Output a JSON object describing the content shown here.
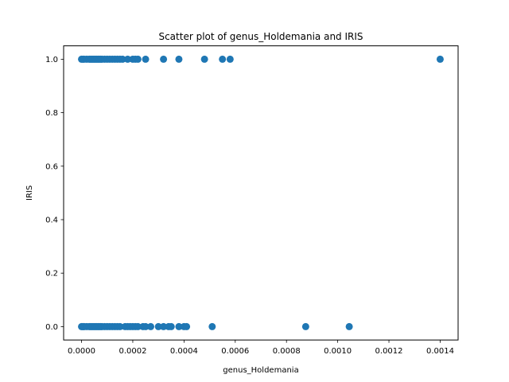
{
  "chart_data": {
    "type": "scatter",
    "title": "Scatter plot of genus_Holdemania and IRIS",
    "xlabel": "genus_Holdemania",
    "ylabel": "IRIS",
    "xlim": [
      -7e-05,
      0.00147
    ],
    "ylim": [
      -0.05,
      1.05
    ],
    "xticks": [
      0.0,
      0.0002,
      0.0004,
      0.0006,
      0.0008,
      0.001,
      0.0012,
      0.0014
    ],
    "xtick_labels": [
      "0.0000",
      "0.0002",
      "0.0004",
      "0.0006",
      "0.0008",
      "0.0010",
      "0.0012",
      "0.0014"
    ],
    "yticks": [
      0.0,
      0.2,
      0.4,
      0.6,
      0.8,
      1.0
    ],
    "ytick_labels": [
      "0.0",
      "0.2",
      "0.4",
      "0.6",
      "0.8",
      "1.0"
    ],
    "grid": false,
    "point_color": "#1f77b4",
    "series": [
      {
        "x": [
          0.0,
          5e-06,
          1e-05,
          2e-05,
          3e-05,
          3.5e-05,
          4e-05,
          4.5e-05,
          5e-05,
          5.5e-05,
          6e-05,
          6.5e-05,
          7e-05,
          7.5e-05,
          8e-05,
          9e-05,
          0.0001,
          0.00011,
          0.00012,
          0.00013,
          0.00014,
          0.00015,
          0.00016,
          0.00018,
          0.0002,
          0.00021,
          0.00022,
          0.00025,
          0.00032,
          0.00038,
          0.00048,
          0.00055,
          0.00058,
          0.0014,
          0.0,
          3e-06,
          8e-06,
          1e-05,
          2e-05,
          3e-05,
          3.5e-05,
          4e-05,
          4.5e-05,
          5e-05,
          5.5e-05,
          6e-05,
          6.5e-05,
          7e-05,
          7.5e-05,
          8e-05,
          9e-05,
          0.0001,
          0.00011,
          0.00012,
          0.00013,
          0.00014,
          0.00015,
          0.00017,
          0.00018,
          0.00019,
          0.0002,
          0.00021,
          0.00022,
          0.00024,
          0.00025,
          0.00027,
          0.0003,
          0.00032,
          0.00034,
          0.00035,
          0.00038,
          0.0004,
          0.00041,
          0.00051,
          0.000875,
          0.001045
        ],
        "y": [
          1,
          1,
          1,
          1,
          1,
          1,
          1,
          1,
          1,
          1,
          1,
          1,
          1,
          1,
          1,
          1,
          1,
          1,
          1,
          1,
          1,
          1,
          1,
          1,
          1,
          1,
          1,
          1,
          1,
          1,
          1,
          1,
          1,
          1,
          0,
          0,
          0,
          0,
          0,
          0,
          0,
          0,
          0,
          0,
          0,
          0,
          0,
          0,
          0,
          0,
          0,
          0,
          0,
          0,
          0,
          0,
          0,
          0,
          0,
          0,
          0,
          0,
          0,
          0,
          0,
          0,
          0,
          0,
          0,
          0,
          0,
          0,
          0,
          0,
          0,
          0
        ]
      }
    ]
  }
}
